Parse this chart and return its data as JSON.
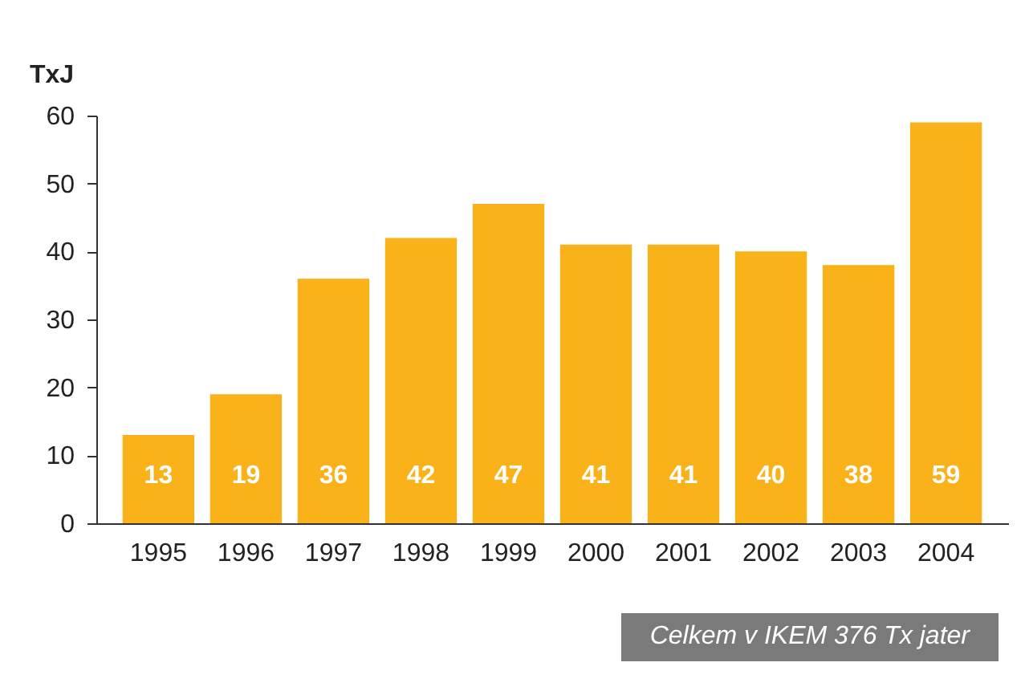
{
  "chart_data": {
    "type": "bar",
    "ylabel": "TxJ",
    "categories": [
      "1995",
      "1996",
      "1997",
      "1998",
      "1999",
      "2000",
      "2001",
      "2002",
      "2003",
      "2004"
    ],
    "values": [
      13,
      19,
      36,
      42,
      47,
      41,
      41,
      40,
      38,
      59
    ],
    "color": "#f9b21a",
    "ylim": [
      0,
      60
    ],
    "yticks": [
      0,
      10,
      20,
      30,
      40,
      50,
      60
    ],
    "data_labels": true,
    "grid": false,
    "annotations": [
      "Celkem v IKEM 376 Tx jater"
    ]
  }
}
